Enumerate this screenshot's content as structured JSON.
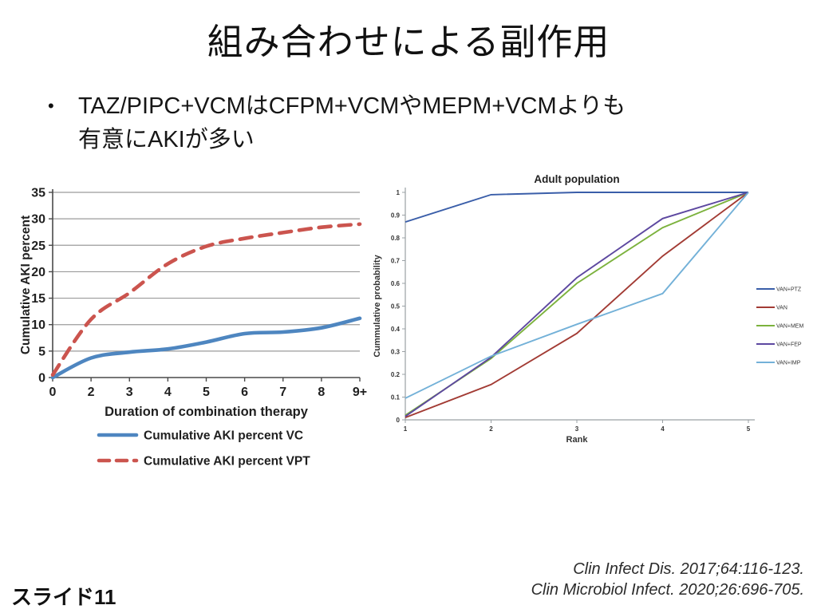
{
  "slide": {
    "title": "組み合わせによる副作用",
    "bullet_marker": "•",
    "bullet_lines": [
      "TAZ/PIPC+VCMはCFPM+VCMやMEPM+VCMよりも",
      "有意にAKIが多い"
    ],
    "slide_label": "スライド11",
    "citations": [
      "Clin Infect Dis. 2017;64:116-123.",
      "Clin Microbiol Infect. 2020;26:696-705."
    ]
  },
  "chart_data": [
    {
      "type": "line",
      "title": "",
      "xlabel": "Duration of combination therapy",
      "ylabel": "Cumulative AKI percent",
      "categories": [
        "0",
        "2",
        "3",
        "4",
        "5",
        "6",
        "7",
        "8",
        "9+"
      ],
      "ylim": [
        0,
        35
      ],
      "ytick_step": 5,
      "grid": "horizontal",
      "legend_position": "bottom-left",
      "colors": {
        "grid": "#9b9b9b",
        "axis": "#4a4a4a",
        "text": "#1f1f1f"
      },
      "series": [
        {
          "name": "Cumulative AKI percent VC",
          "color": "#4e86c0",
          "dash": "solid",
          "values": [
            0,
            3.7,
            4.8,
            5.4,
            6.7,
            8.3,
            8.6,
            9.4,
            11.2
          ]
        },
        {
          "name": "Cumulative AKI percent VPT",
          "color": "#cb544e",
          "dash": "dashed",
          "values": [
            0.5,
            11,
            16,
            21.5,
            24.8,
            26.3,
            27.4,
            28.4,
            29
          ]
        }
      ]
    },
    {
      "type": "line",
      "title": "Adult population",
      "xlabel": "Rank",
      "ylabel": "Cummulative  probability",
      "x": [
        1,
        2,
        3,
        4,
        5
      ],
      "xlim": [
        1,
        5
      ],
      "ylim": [
        0,
        1
      ],
      "ytick_step": 0.1,
      "grid": "off",
      "legend_position": "right",
      "colors": {
        "axis": "#9aa0a4",
        "text": "#333333",
        "title": "#222222"
      },
      "series": [
        {
          "name": "VAN+PTZ",
          "color": "#3a5ea9",
          "values": [
            0.87,
            0.99,
            1,
            1,
            1
          ]
        },
        {
          "name": "VAN",
          "color": "#a23b34",
          "values": [
            0.01,
            0.155,
            0.38,
            0.72,
            1
          ]
        },
        {
          "name": "VAN+MEM",
          "color": "#7cb23d",
          "values": [
            0.02,
            0.27,
            0.6,
            0.845,
            1
          ]
        },
        {
          "name": "VAN+FEP",
          "color": "#5d48a0",
          "values": [
            0.015,
            0.275,
            0.625,
            0.885,
            1
          ]
        },
        {
          "name": "VAN+IMP",
          "color": "#73b1d8",
          "values": [
            0.095,
            0.28,
            0.42,
            0.555,
            1
          ]
        }
      ]
    }
  ]
}
